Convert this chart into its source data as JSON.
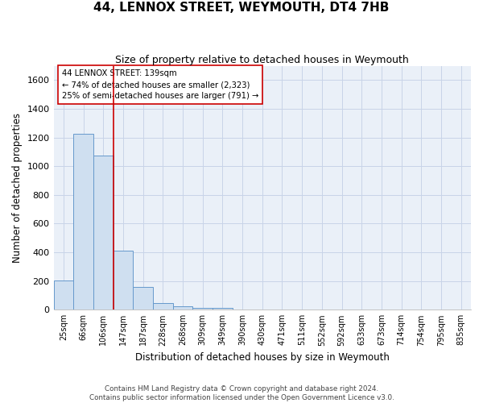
{
  "title": "44, LENNOX STREET, WEYMOUTH, DT4 7HB",
  "subtitle": "Size of property relative to detached houses in Weymouth",
  "xlabel": "Distribution of detached houses by size in Weymouth",
  "ylabel": "Number of detached properties",
  "categories": [
    "25sqm",
    "66sqm",
    "106sqm",
    "147sqm",
    "187sqm",
    "228sqm",
    "268sqm",
    "309sqm",
    "349sqm",
    "390sqm",
    "430sqm",
    "471sqm",
    "511sqm",
    "552sqm",
    "592sqm",
    "633sqm",
    "673sqm",
    "714sqm",
    "754sqm",
    "795sqm",
    "835sqm"
  ],
  "values": [
    205,
    1225,
    1075,
    410,
    160,
    45,
    25,
    15,
    15,
    0,
    0,
    0,
    0,
    0,
    0,
    0,
    0,
    0,
    0,
    0,
    0
  ],
  "bar_color": "#cfdff0",
  "bar_edge_color": "#6699cc",
  "bar_edge_width": 0.7,
  "ylim": [
    0,
    1700
  ],
  "yticks": [
    0,
    200,
    400,
    600,
    800,
    1000,
    1200,
    1400,
    1600
  ],
  "red_line_x": 2.5,
  "annotation_text_line1": "44 LENNOX STREET: 139sqm",
  "annotation_text_line2": "← 74% of detached houses are smaller (2,323)",
  "annotation_text_line3": "25% of semi-detached houses are larger (791) →",
  "annotation_box_color": "#cc0000",
  "grid_color": "#c8d4e8",
  "background_color": "#eaf0f8",
  "footer_line1": "Contains HM Land Registry data © Crown copyright and database right 2024.",
  "footer_line2": "Contains public sector information licensed under the Open Government Licence v3.0."
}
